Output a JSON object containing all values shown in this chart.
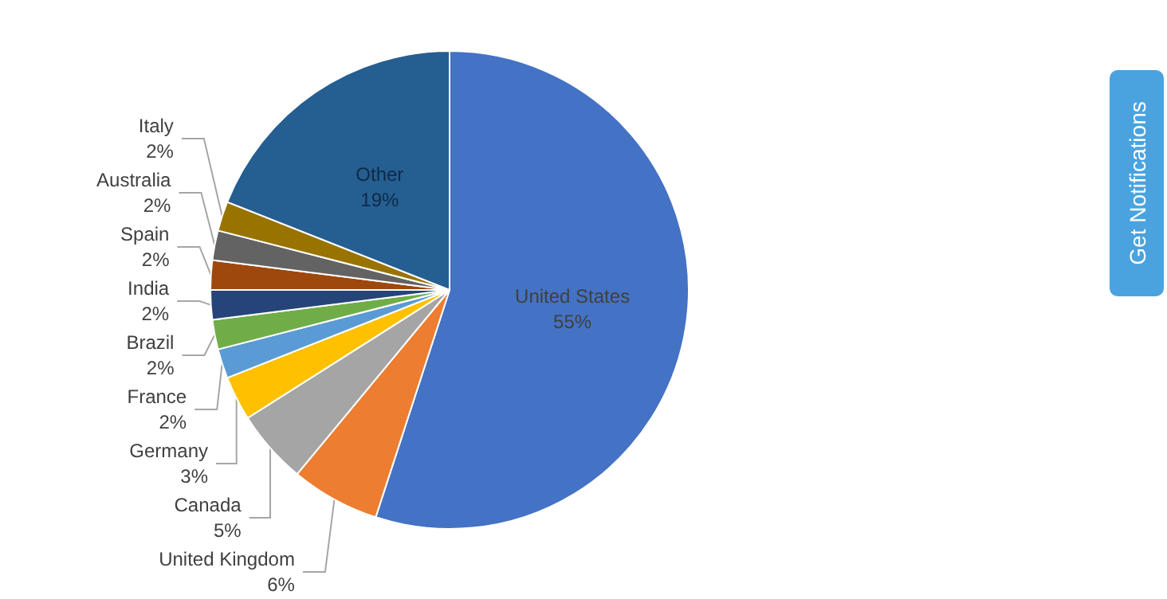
{
  "chart_data": {
    "type": "pie",
    "categories": [
      "United States",
      "United Kingdom",
      "Canada",
      "Germany",
      "France",
      "Brazil",
      "India",
      "Spain",
      "Australia",
      "Italy",
      "Other"
    ],
    "values": [
      55,
      6,
      5,
      3,
      2,
      2,
      2,
      2,
      2,
      2,
      19
    ],
    "value_labels": [
      "55%",
      "6%",
      "5%",
      "3%",
      "2%",
      "2%",
      "2%",
      "2%",
      "2%",
      "2%",
      "19%"
    ],
    "colors": [
      "#4472c4",
      "#ed7d31",
      "#a5a5a5",
      "#ffc000",
      "#5b9bd5",
      "#70ad47",
      "#264478",
      "#9e480e",
      "#636363",
      "#997300",
      "#255e91"
    ],
    "legend": false,
    "annotations": [
      "Get Notifications"
    ]
  }
}
